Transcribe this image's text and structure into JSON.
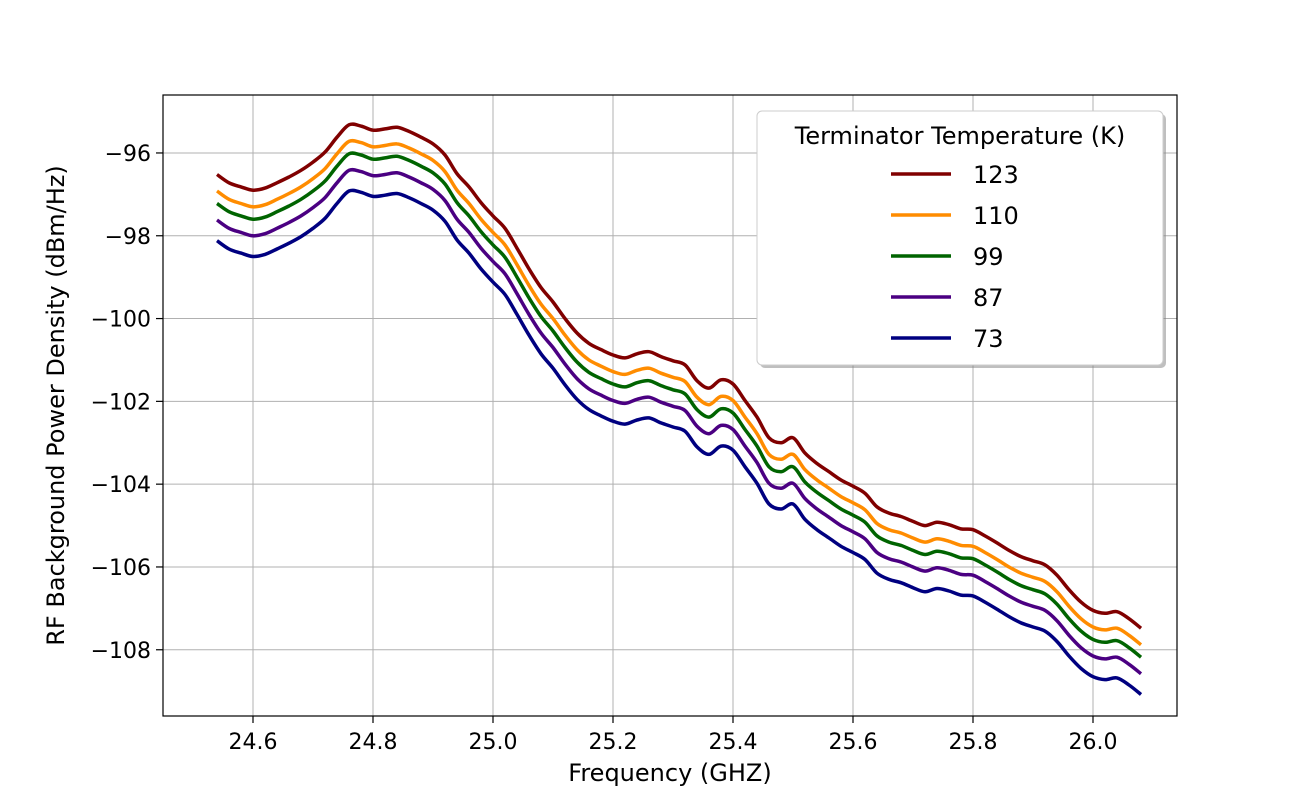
{
  "chart_data": {
    "type": "line",
    "title": "",
    "xlabel": "Frequency (GHZ)",
    "ylabel": "RF Background Power Density (dBm/Hz)",
    "xlim": [
      24.45,
      26.14
    ],
    "ylim": [
      -109.6,
      -94.6
    ],
    "xticks": [
      24.6,
      24.8,
      25.0,
      25.2,
      25.4,
      25.6,
      25.8,
      26.0
    ],
    "xtick_labels": [
      "24.6",
      "24.8",
      "25.0",
      "25.2",
      "25.4",
      "25.6",
      "25.8",
      "26.0"
    ],
    "yticks": [
      -96,
      -98,
      -100,
      -102,
      -104,
      -106,
      -108
    ],
    "ytick_labels": [
      "−96",
      "−98",
      "−100",
      "−102",
      "−104",
      "−106",
      "−108"
    ],
    "grid": true,
    "legend": {
      "title": "Terminator Temperature (K)",
      "placement": "top-right"
    },
    "base_x": [
      24.54,
      24.56,
      24.58,
      24.6,
      24.62,
      24.64,
      24.66,
      24.68,
      24.7,
      24.72,
      24.74,
      24.76,
      24.78,
      24.8,
      24.82,
      24.84,
      24.86,
      24.88,
      24.9,
      24.92,
      24.94,
      24.96,
      24.98,
      25.0,
      25.02,
      25.04,
      25.06,
      25.08,
      25.1,
      25.12,
      25.14,
      25.16,
      25.18,
      25.2,
      25.22,
      25.24,
      25.26,
      25.28,
      25.3,
      25.32,
      25.34,
      25.36,
      25.38,
      25.4,
      25.42,
      25.44,
      25.46,
      25.48,
      25.5,
      25.52,
      25.54,
      25.56,
      25.58,
      25.6,
      25.62,
      25.64,
      25.66,
      25.68,
      25.7,
      25.72,
      25.74,
      25.76,
      25.78,
      25.8,
      25.82,
      25.84,
      25.86,
      25.88,
      25.9,
      25.92,
      25.94,
      25.96,
      25.98,
      26.0,
      26.02,
      26.04,
      26.06,
      26.08
    ],
    "series": [
      {
        "name": "123",
        "color": "#800000",
        "values": [
          -96.52,
          -96.72,
          -96.82,
          -96.9,
          -96.85,
          -96.72,
          -96.58,
          -96.42,
          -96.22,
          -95.98,
          -95.62,
          -95.32,
          -95.35,
          -95.45,
          -95.42,
          -95.38,
          -95.48,
          -95.62,
          -95.78,
          -96.05,
          -96.5,
          -96.82,
          -97.2,
          -97.52,
          -97.82,
          -98.3,
          -98.8,
          -99.25,
          -99.6,
          -100.0,
          -100.35,
          -100.6,
          -100.75,
          -100.88,
          -100.95,
          -100.85,
          -100.8,
          -100.92,
          -101.02,
          -101.12,
          -101.5,
          -101.68,
          -101.48,
          -101.58,
          -101.98,
          -102.38,
          -102.88,
          -103.0,
          -102.88,
          -103.25,
          -103.5,
          -103.7,
          -103.9,
          -104.05,
          -104.22,
          -104.55,
          -104.7,
          -104.78,
          -104.9,
          -105.0,
          -104.92,
          -104.98,
          -105.08,
          -105.1,
          -105.25,
          -105.42,
          -105.6,
          -105.75,
          -105.85,
          -105.95,
          -106.2,
          -106.55,
          -106.85,
          -107.05,
          -107.12,
          -107.08,
          -107.25,
          -107.48
        ]
      },
      {
        "name": "110",
        "color": "#ff8c00",
        "values": [
          -96.92,
          -97.12,
          -97.22,
          -97.3,
          -97.25,
          -97.12,
          -96.98,
          -96.82,
          -96.62,
          -96.38,
          -96.02,
          -95.72,
          -95.75,
          -95.85,
          -95.82,
          -95.78,
          -95.88,
          -96.02,
          -96.18,
          -96.45,
          -96.9,
          -97.22,
          -97.6,
          -97.92,
          -98.22,
          -98.7,
          -99.2,
          -99.65,
          -100.0,
          -100.4,
          -100.75,
          -101.0,
          -101.15,
          -101.28,
          -101.35,
          -101.25,
          -101.2,
          -101.32,
          -101.42,
          -101.52,
          -101.9,
          -102.08,
          -101.88,
          -101.98,
          -102.38,
          -102.78,
          -103.28,
          -103.4,
          -103.28,
          -103.65,
          -103.9,
          -104.1,
          -104.3,
          -104.45,
          -104.62,
          -104.95,
          -105.1,
          -105.18,
          -105.3,
          -105.4,
          -105.32,
          -105.38,
          -105.48,
          -105.5,
          -105.65,
          -105.82,
          -106.0,
          -106.15,
          -106.25,
          -106.35,
          -106.6,
          -106.95,
          -107.25,
          -107.45,
          -107.52,
          -107.48,
          -107.65,
          -107.88
        ]
      },
      {
        "name": "99",
        "color": "#006400",
        "values": [
          -97.22,
          -97.42,
          -97.52,
          -97.6,
          -97.55,
          -97.42,
          -97.28,
          -97.12,
          -96.92,
          -96.68,
          -96.32,
          -96.02,
          -96.05,
          -96.15,
          -96.12,
          -96.08,
          -96.18,
          -96.32,
          -96.48,
          -96.75,
          -97.2,
          -97.52,
          -97.9,
          -98.22,
          -98.52,
          -99.0,
          -99.5,
          -99.95,
          -100.3,
          -100.7,
          -101.05,
          -101.3,
          -101.45,
          -101.58,
          -101.65,
          -101.55,
          -101.5,
          -101.62,
          -101.72,
          -101.82,
          -102.2,
          -102.38,
          -102.18,
          -102.28,
          -102.68,
          -103.08,
          -103.58,
          -103.7,
          -103.58,
          -103.95,
          -104.2,
          -104.4,
          -104.6,
          -104.75,
          -104.92,
          -105.25,
          -105.4,
          -105.48,
          -105.6,
          -105.7,
          -105.62,
          -105.68,
          -105.78,
          -105.8,
          -105.95,
          -106.12,
          -106.3,
          -106.45,
          -106.55,
          -106.65,
          -106.9,
          -107.25,
          -107.55,
          -107.75,
          -107.82,
          -107.78,
          -107.95,
          -108.18
        ]
      },
      {
        "name": "87",
        "color": "#4b0082",
        "values": [
          -97.62,
          -97.82,
          -97.92,
          -98.0,
          -97.95,
          -97.82,
          -97.68,
          -97.52,
          -97.32,
          -97.08,
          -96.72,
          -96.42,
          -96.45,
          -96.55,
          -96.52,
          -96.48,
          -96.58,
          -96.72,
          -96.88,
          -97.15,
          -97.6,
          -97.92,
          -98.3,
          -98.62,
          -98.92,
          -99.4,
          -99.9,
          -100.35,
          -100.7,
          -101.1,
          -101.45,
          -101.7,
          -101.85,
          -101.98,
          -102.05,
          -101.95,
          -101.9,
          -102.02,
          -102.12,
          -102.22,
          -102.6,
          -102.78,
          -102.58,
          -102.68,
          -103.08,
          -103.48,
          -103.98,
          -104.1,
          -103.98,
          -104.35,
          -104.6,
          -104.8,
          -105.0,
          -105.15,
          -105.32,
          -105.65,
          -105.8,
          -105.88,
          -106.0,
          -106.1,
          -106.02,
          -106.08,
          -106.18,
          -106.2,
          -106.35,
          -106.52,
          -106.7,
          -106.85,
          -106.95,
          -107.05,
          -107.3,
          -107.65,
          -107.95,
          -108.15,
          -108.22,
          -108.18,
          -108.35,
          -108.58
        ]
      },
      {
        "name": "73",
        "color": "#000080",
        "values": [
          -98.12,
          -98.32,
          -98.42,
          -98.5,
          -98.45,
          -98.32,
          -98.18,
          -98.02,
          -97.82,
          -97.58,
          -97.22,
          -96.92,
          -96.95,
          -97.05,
          -97.02,
          -96.98,
          -97.08,
          -97.22,
          -97.38,
          -97.65,
          -98.1,
          -98.42,
          -98.8,
          -99.12,
          -99.42,
          -99.9,
          -100.4,
          -100.85,
          -101.2,
          -101.6,
          -101.95,
          -102.2,
          -102.35,
          -102.48,
          -102.55,
          -102.45,
          -102.4,
          -102.52,
          -102.62,
          -102.72,
          -103.1,
          -103.28,
          -103.08,
          -103.18,
          -103.58,
          -103.98,
          -104.48,
          -104.6,
          -104.48,
          -104.85,
          -105.1,
          -105.3,
          -105.5,
          -105.65,
          -105.82,
          -106.15,
          -106.3,
          -106.38,
          -106.5,
          -106.6,
          -106.52,
          -106.58,
          -106.68,
          -106.7,
          -106.85,
          -107.02,
          -107.2,
          -107.35,
          -107.45,
          -107.55,
          -107.8,
          -108.15,
          -108.45,
          -108.65,
          -108.72,
          -108.68,
          -108.85,
          -109.08
        ]
      }
    ]
  }
}
